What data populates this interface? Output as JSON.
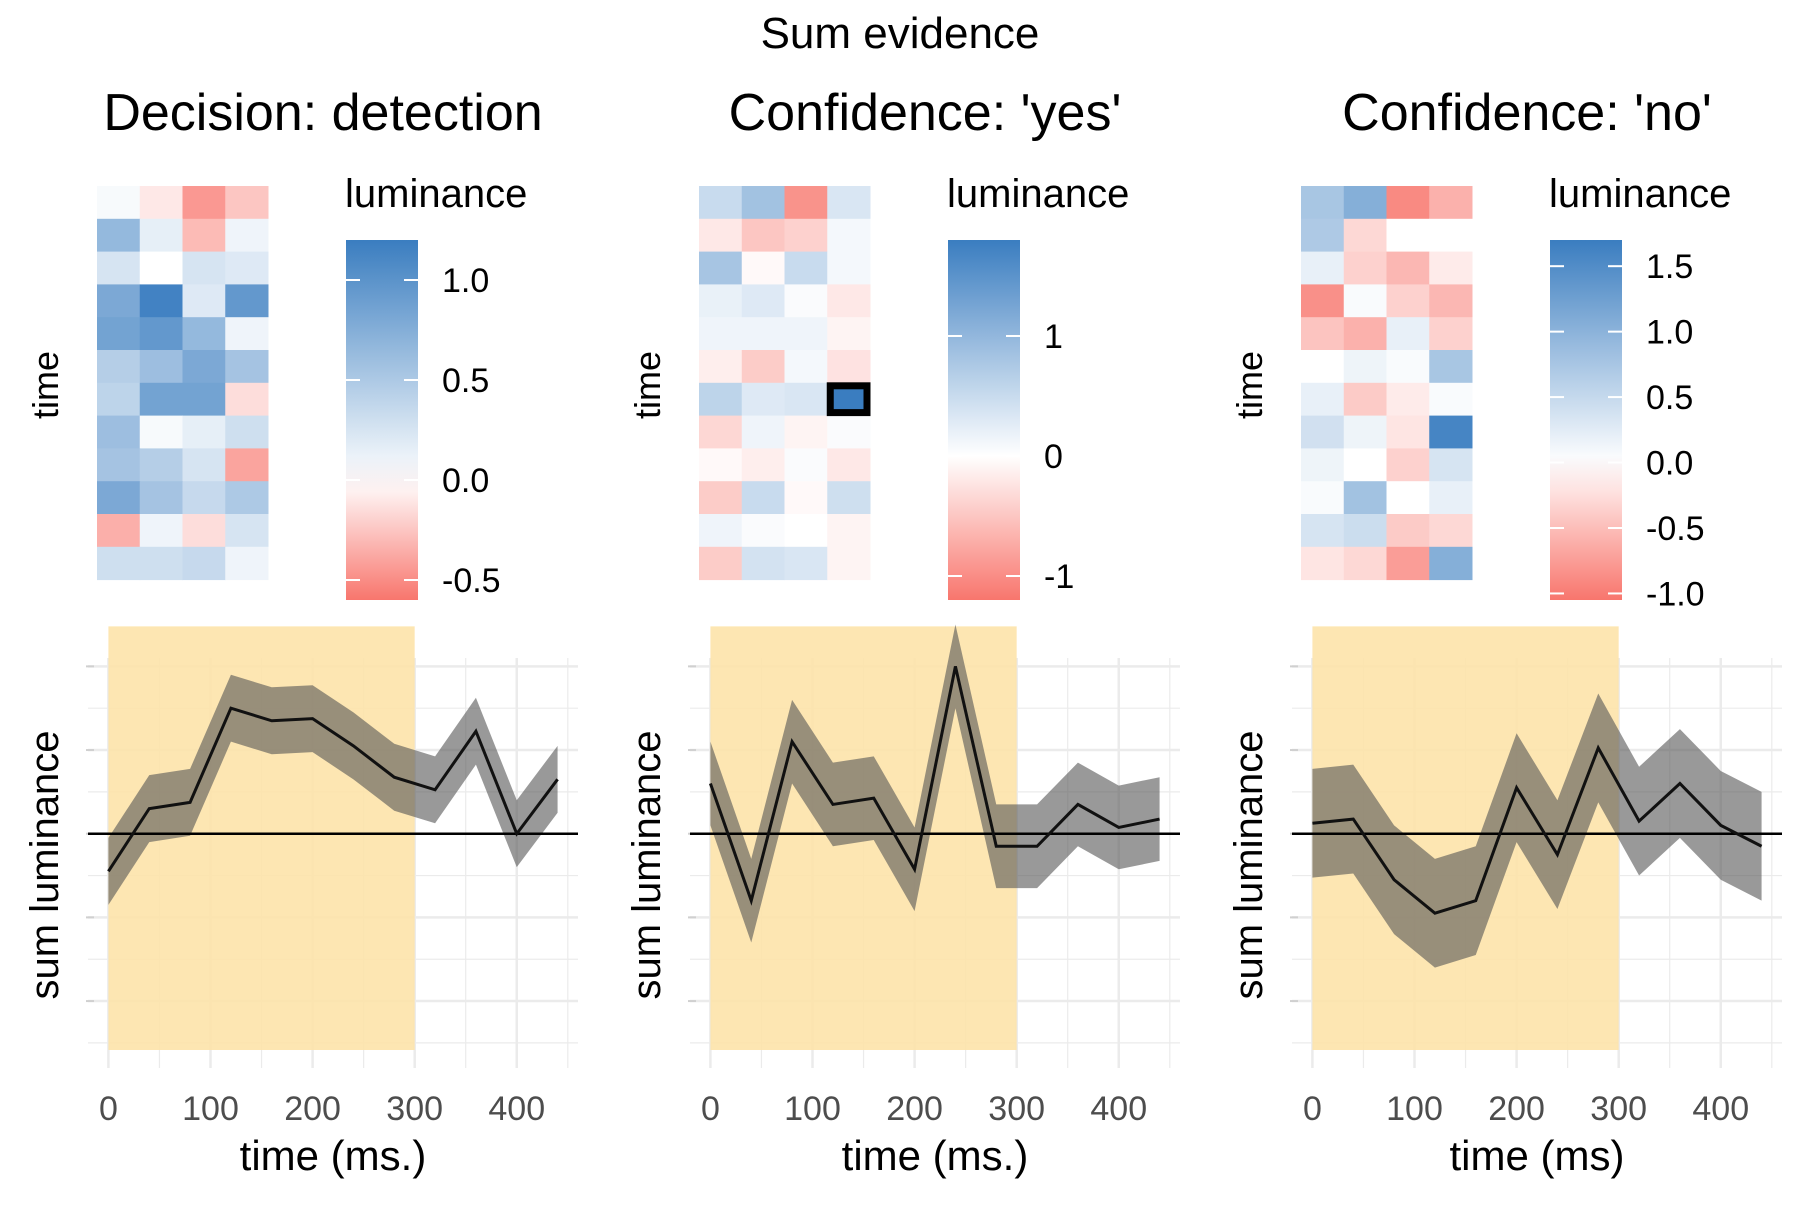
{
  "suptitle": "Sum evidence",
  "chart_data": [
    {
      "type": "heatmap",
      "title": "Decision: detection",
      "ylabel": "time",
      "legend_title": "luminance",
      "legend_ticks": [
        "1.0",
        "0.5",
        "0.0",
        "-0.5"
      ],
      "legend_tick_values": [
        1.0,
        0.5,
        0.0,
        -0.5
      ],
      "color_range": [
        -0.6,
        1.2
      ],
      "colors": {
        "low": "#F8766D",
        "mid": "#FFFFFF",
        "high": "#3A7DC0"
      },
      "highlight": null,
      "cells": [
        [
          0.05,
          -0.1,
          -0.45,
          -0.25
        ],
        [
          0.65,
          0.15,
          -0.3,
          0.1
        ],
        [
          0.25,
          0.0,
          0.25,
          0.2
        ],
        [
          0.8,
          1.15,
          0.2,
          0.95
        ],
        [
          0.85,
          0.95,
          0.65,
          0.1
        ],
        [
          0.45,
          0.6,
          0.8,
          0.55
        ],
        [
          0.4,
          0.85,
          0.85,
          -0.15
        ],
        [
          0.6,
          0.05,
          0.15,
          0.3
        ],
        [
          0.55,
          0.45,
          0.25,
          -0.4
        ],
        [
          0.8,
          0.55,
          0.35,
          0.5
        ],
        [
          -0.35,
          0.1,
          -0.15,
          0.25
        ],
        [
          0.3,
          0.3,
          0.35,
          0.1
        ]
      ]
    },
    {
      "type": "heatmap",
      "title": "Confidence: 'yes'",
      "ylabel": "time",
      "legend_title": "luminance",
      "legend_ticks": [
        "1",
        "0",
        "-1"
      ],
      "legend_tick_values": [
        1,
        0,
        -1
      ],
      "color_range": [
        -1.2,
        1.8
      ],
      "colors": {
        "low": "#F8766D",
        "mid": "#FFFFFF",
        "high": "#3A7DC0"
      },
      "highlight": {
        "row": 6,
        "col": 3
      },
      "cells": [
        [
          0.5,
          0.85,
          -0.95,
          0.35
        ],
        [
          -0.2,
          -0.5,
          -0.4,
          0.1
        ],
        [
          0.8,
          -0.05,
          0.5,
          0.1
        ],
        [
          0.2,
          0.3,
          0.05,
          -0.2
        ],
        [
          0.15,
          0.15,
          0.15,
          -0.1
        ],
        [
          -0.15,
          -0.45,
          0.1,
          -0.25
        ],
        [
          0.6,
          0.3,
          0.35,
          1.8
        ],
        [
          -0.35,
          0.15,
          -0.1,
          0.05
        ],
        [
          -0.05,
          -0.15,
          0.05,
          -0.2
        ],
        [
          -0.45,
          0.5,
          -0.05,
          0.45
        ],
        [
          0.15,
          0.05,
          0.0,
          -0.1
        ],
        [
          -0.45,
          0.4,
          0.35,
          -0.1
        ]
      ]
    },
    {
      "type": "heatmap",
      "title": "Confidence: 'no'",
      "ylabel": "time",
      "legend_title": "luminance",
      "legend_ticks": [
        "1.5",
        "1.0",
        "0.5",
        "0.0",
        "-0.5",
        "-1.0"
      ],
      "legend_tick_values": [
        1.5,
        1.0,
        0.5,
        0.0,
        -0.5,
        -1.0
      ],
      "color_range": [
        -1.05,
        1.7
      ],
      "colors": {
        "low": "#F8766D",
        "mid": "#FFFFFF",
        "high": "#3A7DC0"
      },
      "highlight": null,
      "cells": [
        [
          0.75,
          1.05,
          -0.9,
          -0.6
        ],
        [
          0.7,
          -0.3,
          0.0,
          0.0
        ],
        [
          0.2,
          -0.35,
          -0.55,
          -0.15
        ],
        [
          -0.85,
          0.05,
          -0.35,
          -0.55
        ],
        [
          -0.45,
          -0.6,
          0.2,
          -0.35
        ],
        [
          0.0,
          0.15,
          0.05,
          0.75
        ],
        [
          0.2,
          -0.4,
          -0.15,
          0.05
        ],
        [
          0.4,
          0.15,
          -0.2,
          1.6
        ],
        [
          0.15,
          0.0,
          -0.35,
          0.35
        ],
        [
          0.05,
          0.8,
          0.0,
          0.2
        ],
        [
          0.35,
          0.45,
          -0.4,
          -0.3
        ],
        [
          -0.2,
          -0.3,
          -0.75,
          1.05
        ]
      ]
    },
    {
      "type": "line",
      "xlabel": "time (ms.)",
      "ylabel": "sum luminance",
      "x_ticks": [
        0,
        100,
        200,
        300,
        400
      ],
      "xlim": [
        -20,
        460
      ],
      "ylim": [
        -5.6,
        4.2
      ],
      "y_grid": [
        -4,
        -2,
        0,
        2,
        4
      ],
      "shaded_region": [
        0,
        300
      ],
      "x": [
        0,
        40,
        80,
        120,
        160,
        200,
        240,
        280,
        320,
        360,
        400,
        440
      ],
      "y": [
        -0.9,
        0.6,
        0.75,
        3.0,
        2.7,
        2.75,
        2.1,
        1.35,
        1.05,
        2.45,
        0.0,
        1.3
      ],
      "band": 0.8
    },
    {
      "type": "line",
      "xlabel": "time (ms.)",
      "ylabel": "sum luminance",
      "x_ticks": [
        0,
        100,
        200,
        300,
        400
      ],
      "xlim": [
        -20,
        460
      ],
      "ylim": [
        -5.6,
        4.2
      ],
      "y_grid": [
        -4,
        -2,
        0,
        2,
        4
      ],
      "shaded_region": [
        0,
        300
      ],
      "x": [
        0,
        40,
        80,
        120,
        160,
        200,
        240,
        280,
        320,
        360,
        400,
        440
      ],
      "y": [
        1.2,
        -1.6,
        2.2,
        0.7,
        0.85,
        -0.85,
        4.0,
        -0.3,
        -0.3,
        0.7,
        0.15,
        0.35
      ],
      "band": 1.0
    },
    {
      "type": "line",
      "xlabel": "time (ms)",
      "ylabel": "sum luminance",
      "x_ticks": [
        0,
        100,
        200,
        300,
        400
      ],
      "xlim": [
        -20,
        460
      ],
      "ylim": [
        -5.6,
        4.2
      ],
      "y_grid": [
        -4,
        -2,
        0,
        2,
        4
      ],
      "shaded_region": [
        0,
        300
      ],
      "x": [
        0,
        40,
        80,
        120,
        160,
        200,
        240,
        280,
        320,
        360,
        400,
        440
      ],
      "y": [
        0.25,
        0.35,
        -1.1,
        -1.9,
        -1.6,
        1.1,
        -0.5,
        2.05,
        0.3,
        1.2,
        0.2,
        -0.3
      ],
      "band": 1.3
    }
  ]
}
